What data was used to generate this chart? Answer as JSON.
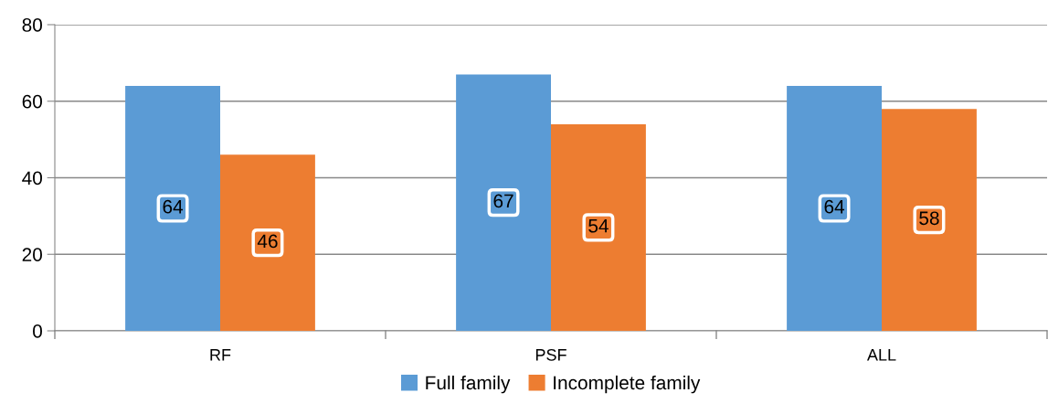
{
  "chart_data": {
    "type": "bar",
    "categories": [
      "RF",
      "PSF",
      "ALL"
    ],
    "series": [
      {
        "name": "Full family",
        "color": "#5b9bd5",
        "values": [
          64,
          67,
          64
        ]
      },
      {
        "name": "Incomplete family",
        "color": "#ed7d31",
        "values": [
          46,
          54,
          58
        ]
      }
    ],
    "ylim": [
      0,
      80
    ],
    "yticks": [
      0,
      20,
      40,
      60,
      80
    ],
    "grid": "y",
    "legend": "bottom",
    "data_labels": true
  }
}
